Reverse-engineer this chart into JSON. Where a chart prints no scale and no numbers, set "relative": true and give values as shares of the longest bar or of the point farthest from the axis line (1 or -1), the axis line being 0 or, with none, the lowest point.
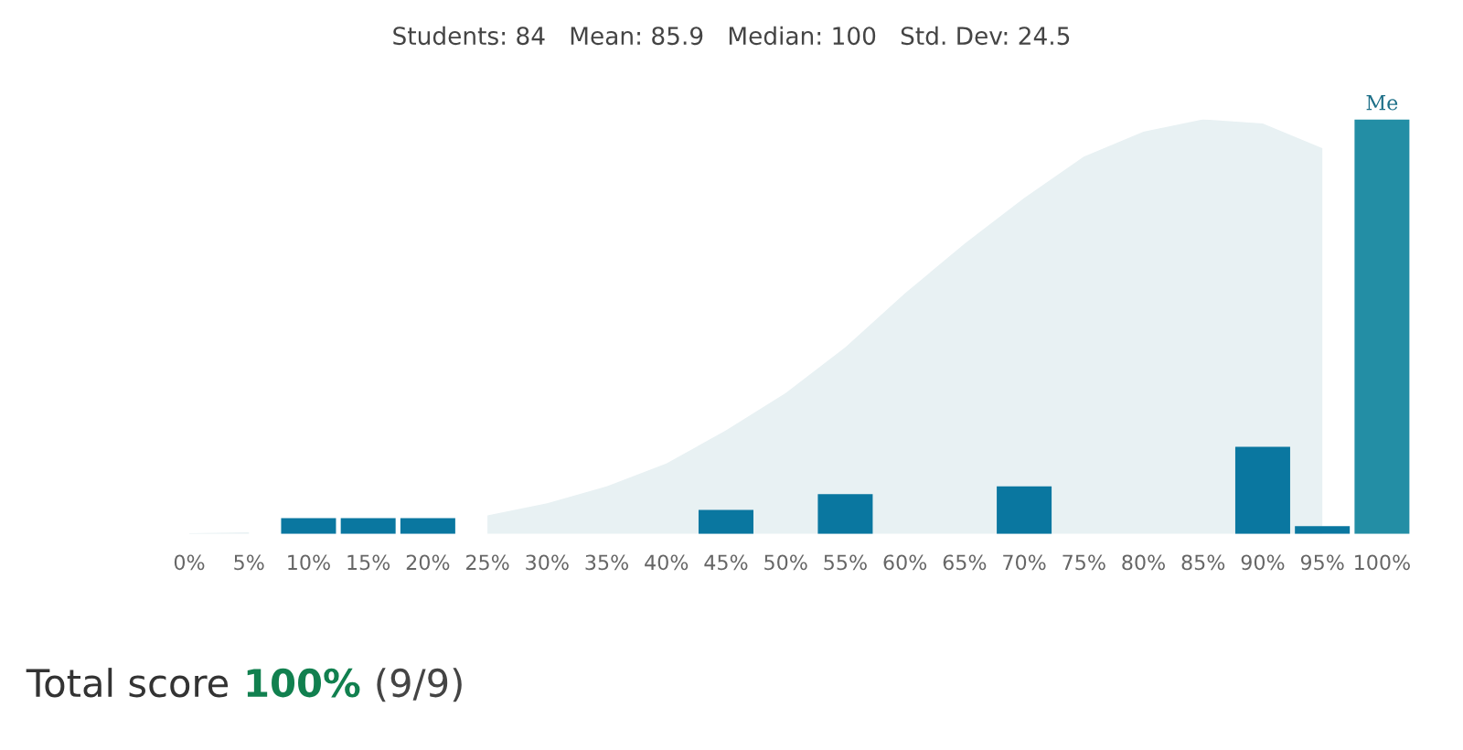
{
  "chart_data": {
    "type": "bar",
    "relative": true,
    "title": "Students: 84   Mean: 85.9   Median: 100   Std. Dev: 24.5",
    "categories": [
      "0%",
      "5%",
      "10%",
      "15%",
      "20%",
      "25%",
      "30%",
      "35%",
      "40%",
      "45%",
      "50%",
      "55%",
      "60%",
      "65%",
      "70%",
      "75%",
      "80%",
      "85%",
      "90%",
      "95%",
      "100%"
    ],
    "series": [
      {
        "type": "area",
        "color": "#e8f1f3",
        "values": [
          0.002,
          0.004,
          null,
          null,
          null,
          0.045,
          0.074,
          0.115,
          0.17,
          0.25,
          0.34,
          0.45,
          0.58,
          0.7,
          0.81,
          0.91,
          0.97,
          1.0,
          0.99,
          0.93,
          null
        ]
      },
      {
        "colors": [
          "#0a77a0",
          "#0a77a0",
          "#0a77a0",
          "#0a77a0",
          "#0a77a0",
          "#0a77a0",
          "#0a77a0",
          "#0a77a0",
          "#0a77a0",
          "#0a77a0",
          "#0a77a0",
          "#0a77a0",
          "#0a77a0",
          "#0a77a0",
          "#0a77a0",
          "#0a77a0",
          "#0a77a0",
          "#0a77a0",
          "#0a77a0",
          "#0a77a0",
          "#238ea5"
        ],
        "values": [
          0,
          0,
          0.038,
          0.038,
          0.038,
          0,
          0,
          0,
          0,
          0.058,
          0,
          0.096,
          0,
          0,
          0.115,
          0,
          0,
          0,
          0.21,
          0.019,
          1.0
        ]
      }
    ],
    "annotations": [
      "Total score",
      "100%",
      "(9/9)",
      {
        "text": "Me",
        "x": "100%",
        "y": 1.0
      }
    ],
    "grid": false,
    "legend": false
  }
}
